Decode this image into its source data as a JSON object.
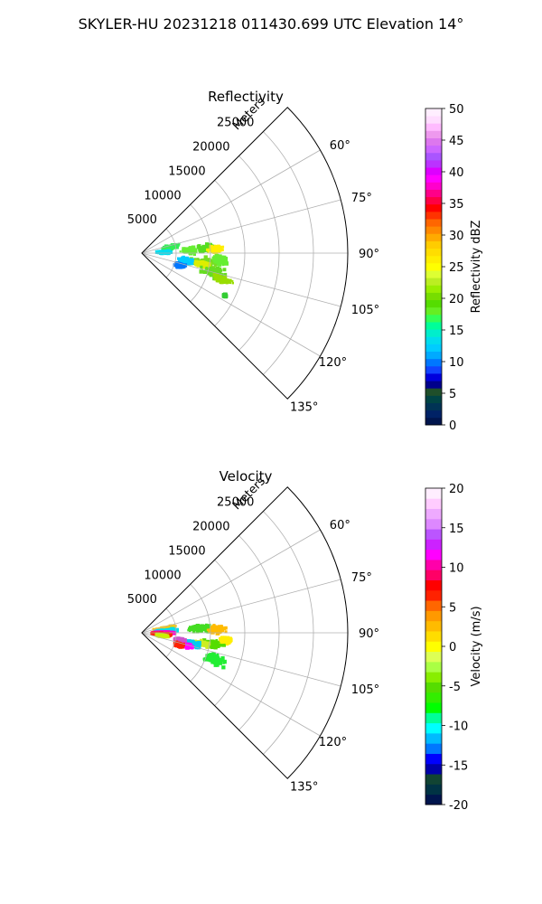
{
  "suptitle": "SKYLER-HU  20231218  011430.699 UTC Elevation 14°",
  "panels": [
    {
      "title": "Reflectivity",
      "range_label": "Meters",
      "range_ticks": [
        "5000",
        "10000",
        "15000",
        "20000",
        "25000"
      ],
      "angle_ticks": [
        "60°",
        "75°",
        "90°",
        "105°",
        "120°",
        "135°"
      ],
      "colorbar": {
        "label": "Reflectivity dBZ",
        "ticks": [
          "0",
          "5",
          "10",
          "15",
          "20",
          "25",
          "30",
          "35",
          "40",
          "45",
          "50"
        ],
        "colors": [
          "#00154d",
          "#002266",
          "#003355",
          "#004444",
          "#1f4f2a",
          "#00008b",
          "#0000dd",
          "#1144ff",
          "#0077ff",
          "#00aaff",
          "#00ccff",
          "#00ddee",
          "#00eecc",
          "#00ff99",
          "#33ff55",
          "#66ee22",
          "#55dd00",
          "#77dd00",
          "#99ee00",
          "#bbee22",
          "#ddff33",
          "#ffff00",
          "#ffee00",
          "#ffdd00",
          "#ffcc00",
          "#ffaa00",
          "#ff8800",
          "#ff6600",
          "#ff3300",
          "#ff0000",
          "#ff0044",
          "#ff0088",
          "#ff00cc",
          "#ff00ff",
          "#dd00ff",
          "#bb33ff",
          "#aa55ff",
          "#cc66ff",
          "#dd77ee",
          "#ee99ee",
          "#ffbbff",
          "#ffddff",
          "#ffeeff"
        ]
      },
      "blobs": [
        {
          "az": 78,
          "r": 4300,
          "sr": 1800,
          "st": 4.5,
          "color": "#33ee55"
        },
        {
          "az": 88,
          "r": 3200,
          "sr": 1300,
          "st": 4,
          "color": "#00ddee"
        },
        {
          "az": 87,
          "r": 7000,
          "sr": 1500,
          "st": 5,
          "color": "#66ee33"
        },
        {
          "az": 86,
          "r": 9500,
          "sr": 2000,
          "st": 4.5,
          "color": "#55dd22"
        },
        {
          "az": 87,
          "r": 10800,
          "sr": 1400,
          "st": 3.5,
          "color": "#ffee00"
        },
        {
          "az": 99,
          "r": 9000,
          "sr": 2600,
          "st": 6,
          "color": "#77dd22"
        },
        {
          "az": 100,
          "r": 9000,
          "sr": 1400,
          "st": 3,
          "color": "#ddee00"
        },
        {
          "az": 105,
          "r": 11000,
          "sr": 2500,
          "st": 5,
          "color": "#66dd22"
        },
        {
          "az": 108,
          "r": 12500,
          "sr": 1800,
          "st": 3,
          "color": "#99dd00"
        },
        {
          "az": 100,
          "r": 6500,
          "sr": 1400,
          "st": 5,
          "color": "#00ccff"
        },
        {
          "az": 108,
          "r": 5800,
          "sr": 1000,
          "st": 4,
          "color": "#0077ff"
        },
        {
          "az": 95,
          "r": 11500,
          "sr": 1500,
          "st": 4,
          "color": "#66ee33"
        },
        {
          "az": 117,
          "r": 13600,
          "sr": 300,
          "st": 0.8,
          "color": "#33cc33"
        }
      ]
    },
    {
      "title": "Velocity",
      "range_label": "Meters",
      "range_ticks": [
        "5000",
        "10000",
        "15000",
        "20000",
        "25000"
      ],
      "angle_ticks": [
        "60°",
        "75°",
        "90°",
        "105°",
        "120°",
        "135°"
      ],
      "colorbar": {
        "label": "Velocity (m/s)",
        "ticks": [
          "-20",
          "-15",
          "-10",
          "-5",
          "0",
          "5",
          "10",
          "15",
          "20"
        ],
        "colors": [
          "#00154d",
          "#003344",
          "#114433",
          "#0000aa",
          "#0000ff",
          "#0077ff",
          "#00bbff",
          "#00ffff",
          "#00ff99",
          "#00ff00",
          "#33ee00",
          "#55dd00",
          "#88ee00",
          "#aaff44",
          "#ddff55",
          "#ffff00",
          "#ffdd00",
          "#ffbb00",
          "#ff9900",
          "#ff6600",
          "#ff2200",
          "#ff0000",
          "#ff0066",
          "#ff00aa",
          "#ff00ff",
          "#cc22ff",
          "#bb55ff",
          "#dd88ff",
          "#eeaaff",
          "#ffccff",
          "#ffeeff"
        ]
      },
      "blobs": [
        {
          "az": 79,
          "r": 3500,
          "sr": 2200,
          "st": 3,
          "color": "#ffcc00"
        },
        {
          "az": 85,
          "r": 3500,
          "sr": 2000,
          "st": 3,
          "color": "#00ddee"
        },
        {
          "az": 90,
          "r": 3000,
          "sr": 2200,
          "st": 2.5,
          "color": "#ff00cc"
        },
        {
          "az": 94,
          "r": 2800,
          "sr": 1800,
          "st": 3,
          "color": "#ff2200"
        },
        {
          "az": 98,
          "r": 3000,
          "sr": 1200,
          "st": 3,
          "color": "#ccee00"
        },
        {
          "az": 86,
          "r": 8500,
          "sr": 2000,
          "st": 4,
          "color": "#44dd22"
        },
        {
          "az": 87,
          "r": 11000,
          "sr": 1500,
          "st": 4,
          "color": "#ffbb00"
        },
        {
          "az": 99,
          "r": 10500,
          "sr": 2200,
          "st": 4,
          "color": "#55dd00"
        },
        {
          "az": 100,
          "r": 8800,
          "sr": 1500,
          "st": 3,
          "color": "#ccee22"
        },
        {
          "az": 95,
          "r": 12300,
          "sr": 1200,
          "st": 3,
          "color": "#ffee00"
        },
        {
          "az": 103,
          "r": 7500,
          "sr": 2200,
          "st": 4,
          "color": "#00ccee"
        },
        {
          "az": 110,
          "r": 11500,
          "sr": 2200,
          "st": 5,
          "color": "#22ee33"
        },
        {
          "az": 101,
          "r": 5600,
          "sr": 1000,
          "st": 3,
          "color": "#cc55cc"
        },
        {
          "az": 106,
          "r": 7000,
          "sr": 900,
          "st": 3,
          "color": "#ff00ff"
        },
        {
          "az": 108,
          "r": 5600,
          "sr": 800,
          "st": 3,
          "color": "#ff2200"
        }
      ]
    }
  ],
  "chart_data": [
    {
      "type": "heatmap",
      "title": "Reflectivity",
      "projection": "polar",
      "azimuth_range_deg": [
        45,
        135
      ],
      "range_axis_label": "Meters",
      "rlim": [
        0,
        30000
      ],
      "range_ticks": [
        5000,
        10000,
        15000,
        20000,
        25000
      ],
      "azimuth_ticks_deg": [
        60,
        75,
        90,
        105,
        120,
        135
      ],
      "colorbar_label": "Reflectivity dBZ",
      "colorbar_range": [
        0,
        50
      ],
      "grid": true
    },
    {
      "type": "heatmap",
      "title": "Velocity",
      "projection": "polar",
      "azimuth_range_deg": [
        45,
        135
      ],
      "range_axis_label": "Meters",
      "rlim": [
        0,
        30000
      ],
      "range_ticks": [
        5000,
        10000,
        15000,
        20000,
        25000
      ],
      "azimuth_ticks_deg": [
        60,
        75,
        90,
        105,
        120,
        135
      ],
      "colorbar_label": "Velocity (m/s)",
      "colorbar_range": [
        -20,
        20
      ],
      "grid": true
    }
  ]
}
